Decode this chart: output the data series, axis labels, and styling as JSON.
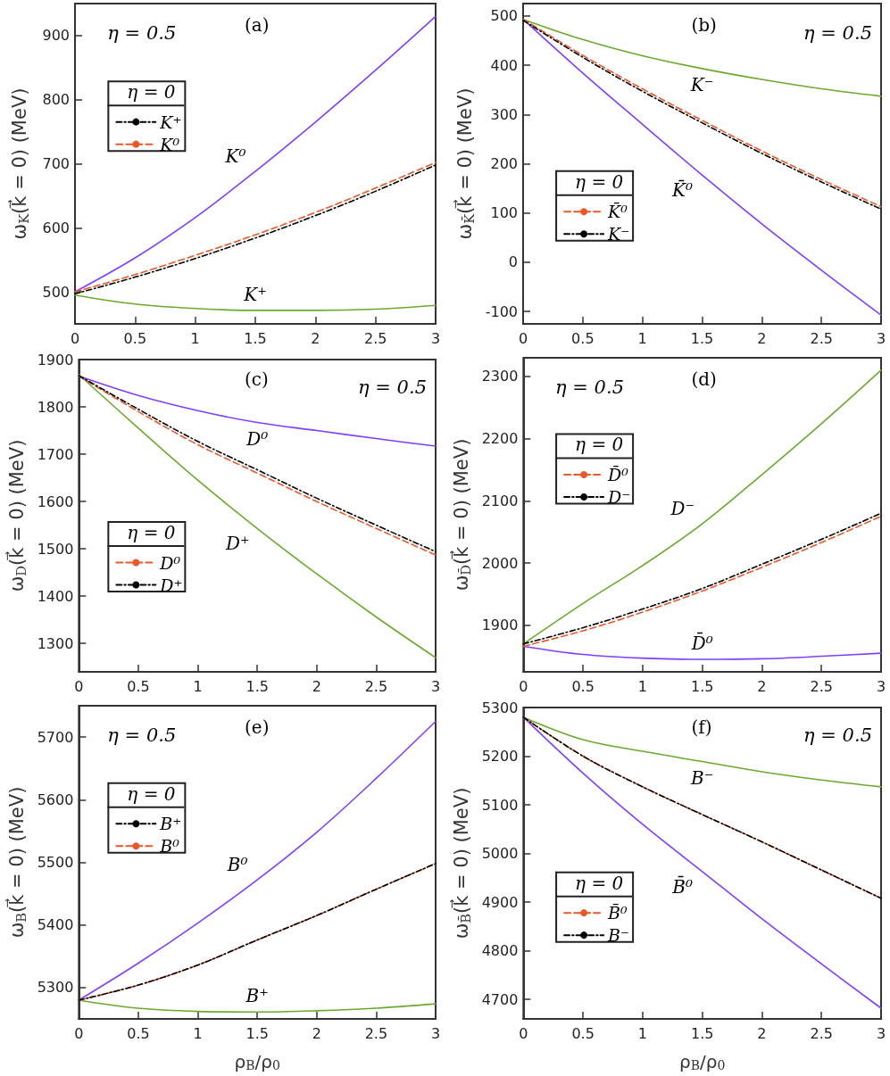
{
  "chart_data": [
    {
      "type": "line",
      "ylabel": "ω$_{K}$(k⃗ = 0) (MeV)",
      "legend_title": "η = 0",
      "annotations": [
        "(a)",
        "η = 0.5"
      ],
      "x": [
        0,
        0.5,
        1,
        1.5,
        2,
        2.5,
        3
      ],
      "xlim": [
        0,
        3
      ],
      "xticks": [
        0,
        0.5,
        1,
        1.5,
        2,
        2.5,
        3
      ],
      "ylim": [
        450,
        950
      ],
      "yticks": [
        500,
        600,
        700,
        800,
        900
      ],
      "grid": false,
      "legend": "top left",
      "marker": "none",
      "series": [
        {
          "name": "K⁰",
          "color": "#7f3fff",
          "line_style": "solid",
          "values": [
            500,
            553,
            616,
            688,
            765,
            846,
            930
          ]
        },
        {
          "name": "K⁺",
          "color": "#6aaa2e",
          "line_style": "solid",
          "values": [
            495,
            481,
            474,
            471,
            471,
            473,
            479
          ]
        },
        {
          "name": "K⁺",
          "color": "#000000",
          "line_style": "dashdot",
          "values": [
            497,
            523,
            552,
            584,
            619,
            657,
            698
          ]
        },
        {
          "name": "K⁰",
          "color": "#e8582a",
          "line_style": "dashed",
          "values": [
            500,
            527,
            557,
            589,
            624,
            662,
            702
          ]
        }
      ]
    },
    {
      "type": "line",
      "ylabel": "ω$_{K̄}$(k⃗ = 0) (MeV)",
      "legend_title": "η = 0",
      "annotations": [
        "(b)",
        "η = 0.5"
      ],
      "x": [
        0,
        0.5,
        1,
        1.5,
        2,
        2.5,
        3
      ],
      "xlim": [
        0,
        3
      ],
      "xticks": [
        0,
        0.5,
        1,
        1.5,
        2,
        2.5,
        3
      ],
      "ylim": [
        -125,
        525
      ],
      "yticks": [
        -100,
        0,
        100,
        200,
        300,
        400,
        500
      ],
      "grid": false,
      "legend": "left",
      "marker": "none",
      "series": [
        {
          "name": "K⁻",
          "color": "#6aaa2e",
          "line_style": "solid",
          "values": [
            493,
            452,
            419,
            393,
            371,
            352,
            337
          ]
        },
        {
          "name": "K̄⁰",
          "color": "#7f3fff",
          "line_style": "solid",
          "values": [
            493,
            384,
            280,
            177,
            78,
            -16,
            -107
          ]
        },
        {
          "name": "K̄⁰",
          "color": "#e8582a",
          "line_style": "dashed",
          "values": [
            493,
            420,
            352,
            288,
            226,
            168,
            113
          ]
        },
        {
          "name": "K⁻",
          "color": "#000000",
          "line_style": "dashdot",
          "values": [
            491,
            416,
            347,
            283,
            221,
            163,
            108
          ]
        }
      ]
    },
    {
      "type": "line",
      "ylabel": "ω$_{D}$(k⃗ = 0) (MeV)",
      "legend_title": "η = 0",
      "annotations": [
        "(c)",
        "η = 0.5"
      ],
      "x": [
        0,
        0.5,
        1,
        1.5,
        2,
        2.5,
        3
      ],
      "xlim": [
        0,
        3
      ],
      "xticks": [
        0,
        0.5,
        1,
        1.5,
        2,
        2.5,
        3
      ],
      "ylim": [
        1240,
        1900
      ],
      "yticks": [
        1300,
        1400,
        1500,
        1600,
        1700,
        1800,
        1900
      ],
      "grid": false,
      "legend": "left",
      "marker": "none",
      "series": [
        {
          "name": "D⁰",
          "color": "#7f3fff",
          "line_style": "solid",
          "values": [
            1865,
            1824,
            1792,
            1767,
            1750,
            1733,
            1717
          ]
        },
        {
          "name": "D⁺",
          "color": "#6aaa2e",
          "line_style": "solid",
          "values": [
            1868,
            1755,
            1645,
            1543,
            1447,
            1356,
            1270
          ]
        },
        {
          "name": "D⁰",
          "color": "#e8582a",
          "line_style": "dashed",
          "values": [
            1865,
            1790,
            1720,
            1660,
            1600,
            1543,
            1487
          ]
        },
        {
          "name": "D⁺",
          "color": "#000000",
          "line_style": "dashdot",
          "values": [
            1866,
            1795,
            1727,
            1667,
            1607,
            1550,
            1494
          ]
        }
      ]
    },
    {
      "type": "line",
      "ylabel": "ω$_{D̄}$(k⃗ = 0) (MeV)",
      "legend_title": "η = 0",
      "annotations": [
        "(d)",
        "η = 0.5"
      ],
      "x": [
        0,
        0.5,
        1,
        1.5,
        2,
        2.5,
        3
      ],
      "xlim": [
        0,
        3
      ],
      "xticks": [
        0,
        0.5,
        1,
        1.5,
        2,
        2.5,
        3
      ],
      "ylim": [
        1825,
        2330
      ],
      "yticks": [
        1900,
        2000,
        2100,
        2200,
        2300
      ],
      "grid": false,
      "legend": "top left",
      "marker": "none",
      "series": [
        {
          "name": "D⁻",
          "color": "#6aaa2e",
          "line_style": "solid",
          "values": [
            1870,
            1935,
            1996,
            2063,
            2142,
            2224,
            2310
          ]
        },
        {
          "name": "D̄⁰",
          "color": "#7f3fff",
          "line_style": "solid",
          "values": [
            1866,
            1853,
            1847,
            1845,
            1846,
            1850,
            1855
          ]
        },
        {
          "name": "D̄⁰",
          "color": "#e8582a",
          "line_style": "dashed",
          "values": [
            1866,
            1891,
            1921,
            1955,
            1993,
            2033,
            2075
          ]
        },
        {
          "name": "D⁻",
          "color": "#000000",
          "line_style": "dashdot",
          "values": [
            1870,
            1896,
            1926,
            1959,
            1998,
            2038,
            2080
          ]
        }
      ]
    },
    {
      "type": "line",
      "xlabel": "ρ$_{B}$/ρ$_{0}$",
      "ylabel": "ω$_{B}$(k⃗ = 0) (MeV)",
      "legend_title": "η = 0",
      "annotations": [
        "(e)",
        "η = 0.5"
      ],
      "x": [
        0,
        0.5,
        1,
        1.5,
        2,
        2.5,
        3
      ],
      "xlim": [
        0,
        3
      ],
      "xticks": [
        0,
        0.5,
        1,
        1.5,
        2,
        2.5,
        3
      ],
      "ylim": [
        5250,
        5750
      ],
      "yticks": [
        5300,
        5400,
        5500,
        5600,
        5700
      ],
      "grid": false,
      "legend": "top left",
      "marker": "none",
      "series": [
        {
          "name": "B⁰",
          "color": "#7f3fff",
          "line_style": "solid",
          "values": [
            5280,
            5339,
            5403,
            5472,
            5548,
            5634,
            5725
          ]
        },
        {
          "name": "B⁺",
          "color": "#6aaa2e",
          "line_style": "solid",
          "values": [
            5280,
            5267,
            5262,
            5261,
            5263,
            5267,
            5274
          ]
        },
        {
          "name": "B⁺",
          "color": "#000000",
          "line_style": "dashdot",
          "values": [
            5280,
            5304,
            5336,
            5376,
            5415,
            5457,
            5498
          ]
        },
        {
          "name": "B⁰",
          "color": "#e8582a",
          "line_style": "dashed",
          "values": [
            5280,
            5304,
            5336,
            5376,
            5415,
            5457,
            5498
          ]
        }
      ]
    },
    {
      "type": "line",
      "xlabel": "ρ$_{B}$/ρ$_{0}$",
      "ylabel": "ω$_{B̄}$(k⃗ = 0) (MeV)",
      "legend_title": "η = 0",
      "annotations": [
        "(f)",
        "η = 0.5"
      ],
      "x": [
        0,
        0.5,
        1,
        1.5,
        2,
        2.5,
        3
      ],
      "xlim": [
        0,
        3
      ],
      "xticks": [
        0,
        0.5,
        1,
        1.5,
        2,
        2.5,
        3
      ],
      "ylim": [
        4660,
        5300
      ],
      "yticks": [
        4700,
        4800,
        4900,
        5000,
        5100,
        5200,
        5300
      ],
      "grid": false,
      "legend": "left",
      "marker": "none",
      "series": [
        {
          "name": "B⁻",
          "color": "#6aaa2e",
          "line_style": "solid",
          "values": [
            5280,
            5234,
            5210,
            5189,
            5168,
            5151,
            5137
          ]
        },
        {
          "name": "B̄⁰",
          "color": "#7f3fff",
          "line_style": "solid",
          "values": [
            5280,
            5165,
            5060,
            4963,
            4866,
            4773,
            4682
          ]
        },
        {
          "name": "B̄⁰",
          "color": "#e8582a",
          "line_style": "dashed",
          "values": [
            5280,
            5200,
            5137,
            5080,
            5024,
            4966,
            4908
          ]
        },
        {
          "name": "B⁻",
          "color": "#000000",
          "line_style": "dashdot",
          "values": [
            5280,
            5200,
            5137,
            5080,
            5024,
            4966,
            4908
          ]
        }
      ]
    }
  ]
}
